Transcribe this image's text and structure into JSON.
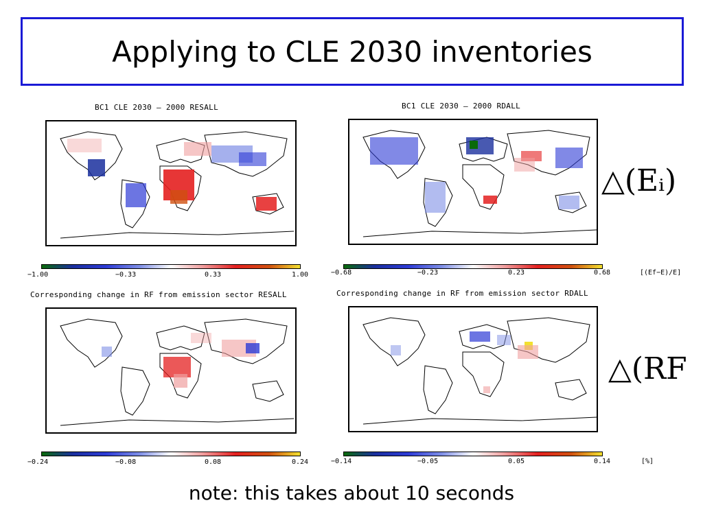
{
  "slide": {
    "title": "Applying to CLE 2030 inventories",
    "note": "note: this takes about 10 seconds"
  },
  "panels": [
    {
      "title": "BC1 CLE 2030 – 2000 RESALL",
      "ticks": [
        "−1.00",
        "−0.33",
        "0.33",
        "1.00"
      ]
    },
    {
      "title": "BC1 CLE 2030 – 2000 RDALL",
      "ticks": [
        "−0.68",
        "−0.23",
        "0.23",
        "0.68"
      ],
      "unit": "[(Ef−E)/E]"
    },
    {
      "title": "Corresponding change in RF from emission sector RESALL",
      "ticks": [
        "−0.24",
        "−0.08",
        "0.08",
        "0.24"
      ]
    },
    {
      "title": "Corresponding change in RF from emission sector RDALL",
      "ticks": [
        "−0.14",
        "−0.05",
        "0.05",
        "0.14"
      ],
      "unit": "[%]"
    }
  ],
  "equations": {
    "emission": "△(Eᵢ)",
    "forcing": "△(RF"
  },
  "colors": {
    "title_border": "#1a1ad6",
    "colormap": [
      "#0a6a0a",
      "#1a2f9e",
      "#2d3bd6",
      "#7f8fe6",
      "#ffffff",
      "#f0a0a0",
      "#e42020",
      "#d05010",
      "#f2e030"
    ]
  }
}
